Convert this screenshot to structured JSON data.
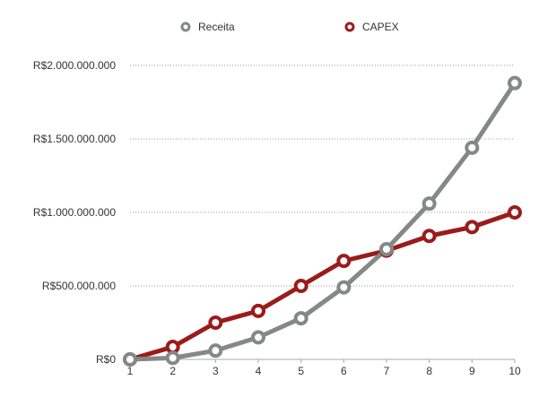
{
  "chart_data": {
    "type": "line",
    "x": [
      1,
      2,
      3,
      4,
      5,
      6,
      7,
      8,
      9,
      10
    ],
    "categories": [
      "1",
      "2",
      "3",
      "4",
      "5",
      "6",
      "7",
      "8",
      "9",
      "10"
    ],
    "ylim": [
      0,
      2000000000
    ],
    "yticks": [
      0,
      500000000,
      1000000000,
      1500000000,
      2000000000
    ],
    "ytick_labels": [
      "R$0",
      "R$500.000.000",
      "R$1.000.000.000",
      "R$1.500.000.000",
      "R$2.000.000.000"
    ],
    "grid": true,
    "legend_position": "top-center",
    "series": [
      {
        "name": "Receita",
        "color": "#848887",
        "values": [
          0,
          10000000,
          60000000,
          150000000,
          280000000,
          490000000,
          750000000,
          1060000000,
          1440000000,
          1880000000
        ]
      },
      {
        "name": "CAPEX",
        "color": "#9b1b1b",
        "values": [
          0,
          85000000,
          250000000,
          330000000,
          500000000,
          670000000,
          740000000,
          840000000,
          900000000,
          1000000000
        ]
      }
    ]
  }
}
